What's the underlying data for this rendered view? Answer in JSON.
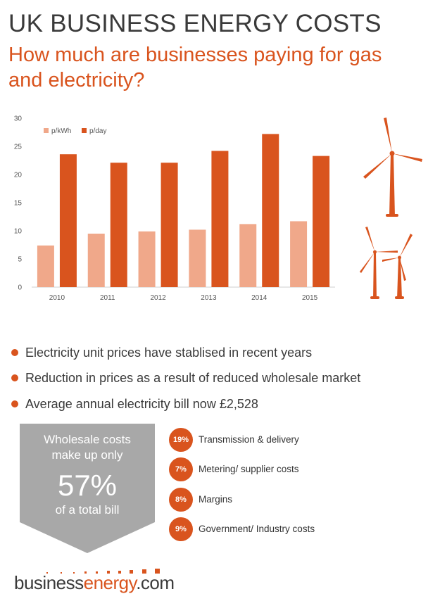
{
  "header": {
    "title": "UK BUSINESS ENERGY COSTS",
    "subtitle": "How much are businesses paying for gas and electricity?"
  },
  "colors": {
    "accent": "#d9541e",
    "light_series": "#f0a88a",
    "dark_series": "#d9541e",
    "callout_gray": "#a8a8a8",
    "text_dark": "#3a3a3a"
  },
  "chart_data": {
    "type": "bar",
    "title": "",
    "xlabel": "",
    "ylabel": "",
    "categories": [
      "2010",
      "2011",
      "2012",
      "2013",
      "2014",
      "2015"
    ],
    "series": [
      {
        "name": "p/kWh",
        "values": [
          7.4,
          9.5,
          9.9,
          10.2,
          11.2,
          11.7
        ]
      },
      {
        "name": "p/day",
        "values": [
          23.6,
          22.1,
          22.1,
          24.2,
          27.2,
          23.3
        ]
      }
    ],
    "ylim": [
      0,
      30
    ],
    "yticks": [
      0,
      5,
      10,
      15,
      20,
      25,
      30
    ],
    "grid": false,
    "legend_position": "top-left"
  },
  "illustration": {
    "icon": "wind-turbines-icon"
  },
  "bullets": [
    "Electricity unit prices have stablised in recent years",
    "Reduction in prices as a result of reduced wholesale market",
    " Average annual electricity bill now £2,528"
  ],
  "callout": {
    "line1": "Wholesale costs",
    "line2": "make up only",
    "percent": "57%",
    "line3": "of a total bill"
  },
  "breakdown": [
    {
      "percent": "19%",
      "label": "Transmission & delivery"
    },
    {
      "percent": "7%",
      "label": "Metering/ supplier costs"
    },
    {
      "percent": "8%",
      "label": "Margins"
    },
    {
      "percent": "9%",
      "label": "Government/ Industry costs"
    }
  ],
  "logo": {
    "part1": "business",
    "part2": "energy",
    "part3": ".com"
  }
}
